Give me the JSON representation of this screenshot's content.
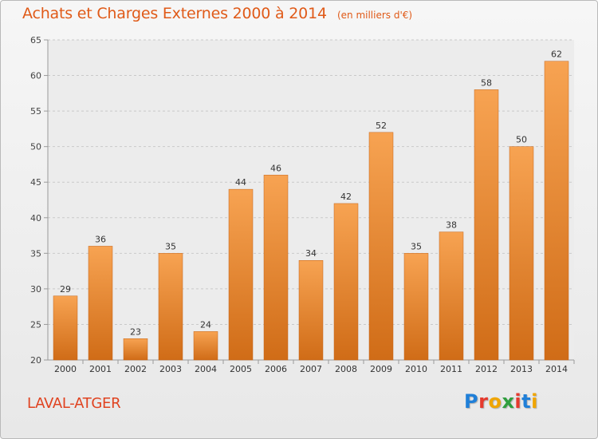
{
  "header": {
    "title": "Achats et Charges Externes 2000 à 2014",
    "unit": "(en milliers d'€)"
  },
  "footer": {
    "commune": "LAVAL-ATGER",
    "logo_letters": [
      "P",
      "r",
      "o",
      "x",
      "i",
      "t",
      "i"
    ],
    "logo_colors": [
      "#1f7fd8",
      "#e53a2e",
      "#f0a500",
      "#2f9e3e",
      "#e53a2e",
      "#1f7fd8",
      "#f0a500"
    ]
  },
  "chart_data": {
    "type": "bar",
    "title": "Achats et Charges Externes 2000 à 2014",
    "subtitle": "(en milliers d'€)",
    "categories": [
      "2000",
      "2001",
      "2002",
      "2003",
      "2004",
      "2005",
      "2006",
      "2007",
      "2008",
      "2009",
      "2010",
      "2011",
      "2012",
      "2013",
      "2014"
    ],
    "values": [
      29,
      36,
      23,
      35,
      24,
      44,
      46,
      34,
      42,
      52,
      35,
      38,
      58,
      50,
      62
    ],
    "ylim": [
      20,
      65
    ],
    "yticks": [
      20,
      25,
      30,
      35,
      40,
      45,
      50,
      55,
      60,
      65
    ],
    "grid": true,
    "bar_color_top": "#f7a352",
    "bar_color_bottom": "#d06c17"
  }
}
